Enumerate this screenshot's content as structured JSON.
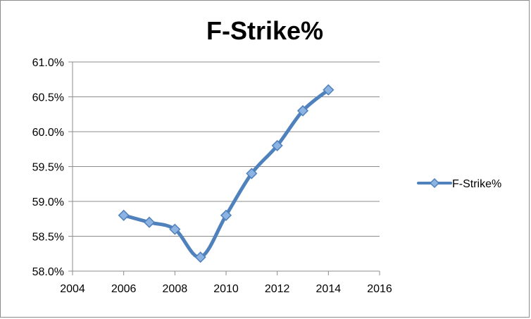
{
  "chart_data": {
    "type": "line",
    "title": "F-Strike%",
    "xlabel": "",
    "ylabel": "",
    "xlim": [
      2004,
      2016
    ],
    "ylim": [
      58.0,
      61.0
    ],
    "x_ticks": [
      2004,
      2006,
      2008,
      2010,
      2012,
      2014,
      2016
    ],
    "x_tick_labels": [
      "2004",
      "2006",
      "2008",
      "2010",
      "2012",
      "2014",
      "2016"
    ],
    "y_ticks": [
      58.0,
      58.5,
      59.0,
      59.5,
      60.0,
      60.5,
      61.0
    ],
    "y_tick_labels": [
      "58.0%",
      "58.5%",
      "59.0%",
      "59.5%",
      "60.0%",
      "60.5%",
      "61.0%"
    ],
    "grid": "horizontal",
    "legend_position": "right",
    "smooth": true,
    "series": [
      {
        "name": "F-Strike%",
        "color": "#4f81bd",
        "marker": "diamond",
        "x": [
          2006,
          2007,
          2008,
          2009,
          2010,
          2011,
          2012,
          2013,
          2014
        ],
        "values": [
          58.8,
          58.7,
          58.6,
          58.2,
          58.8,
          59.4,
          59.8,
          60.3,
          60.6
        ]
      }
    ]
  }
}
